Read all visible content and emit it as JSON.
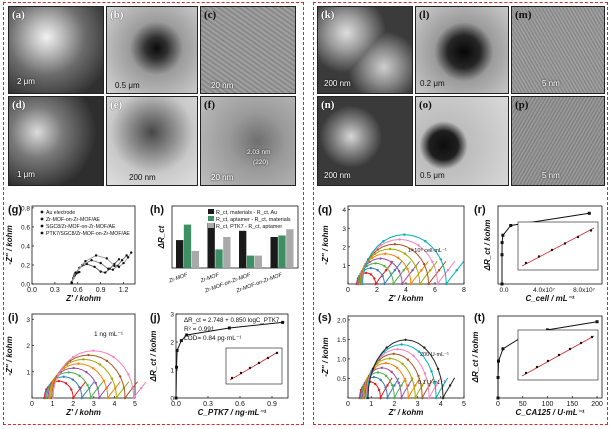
{
  "colors": {
    "frame": "#d9262c",
    "series": [
      "#e41a1c",
      "#377eb8",
      "#4daf4a",
      "#984ea3",
      "#ff7f00",
      "#a6a600",
      "#a65628",
      "#f781bf",
      "#00aeb3",
      "#222222",
      "#1f3a93",
      "#b03030"
    ]
  },
  "micrographs": {
    "a": {
      "label": "(a)",
      "scalebar": "2 μm"
    },
    "b": {
      "label": "(b)",
      "scalebar": "0.5 μm"
    },
    "c": {
      "label": "(c)",
      "scalebar": "20 nm"
    },
    "d": {
      "label": "(d)",
      "scalebar": "1 μm"
    },
    "e": {
      "label": "(e)",
      "scalebar": "200 nm"
    },
    "f": {
      "label": "(f)",
      "scalebar": "20 nm",
      "ann1": "2.03 nm",
      "ann2": "(220)"
    },
    "k": {
      "label": "(k)",
      "scalebar": "200 nm"
    },
    "l": {
      "label": "(l)",
      "scalebar": "0.2 μm"
    },
    "m": {
      "label": "(m)",
      "scalebar": "5 nm"
    },
    "n": {
      "label": "(n)",
      "scalebar": "200 nm"
    },
    "o": {
      "label": "(o)",
      "scalebar": "0.5 μm"
    },
    "p": {
      "label": "(p)",
      "scalebar": "5 nm"
    }
  },
  "chart_data": [
    {
      "panel": "(g)",
      "type": "line",
      "xlabel": "Z' / kohm",
      "ylabel": "-Z'' / kohm",
      "xlim": [
        0,
        1.35
      ],
      "ylim": [
        0,
        0.82
      ],
      "xticks": [
        "0.0",
        "0.3",
        "0.6",
        "0.9",
        "1.2"
      ],
      "yticks": [
        "0.0",
        "0.2",
        "0.4",
        "0.6",
        "0.8"
      ],
      "legend": [
        "Au electrode",
        "Zr-MOF-on-Zr-MOF/AE",
        "SGC8/Zr-MOF-on-Zr-MOF/AE",
        "PTK7/SGC8/Zr-MOF-on-Zr-MOF/AE"
      ],
      "series": [
        {
          "name": "Au electrode",
          "x": [
            0.52,
            0.54,
            0.56,
            0.58,
            0.6,
            0.62
          ],
          "y": [
            0.02,
            0.06,
            0.09,
            0.11,
            0.12,
            0.125
          ]
        },
        {
          "name": "Zr-MOF-on-Zr-MOF/AE",
          "x": [
            0.52,
            0.55,
            0.62,
            0.72,
            0.82,
            0.9,
            0.96,
            1.02,
            1.08,
            1.14
          ],
          "y": [
            0.01,
            0.08,
            0.17,
            0.21,
            0.18,
            0.13,
            0.12,
            0.16,
            0.21,
            0.26
          ]
        },
        {
          "name": "SGC8/Zr-MOF-on-Zr-MOF/AE",
          "x": [
            0.52,
            0.56,
            0.66,
            0.78,
            0.9,
            1.0,
            1.06,
            1.12,
            1.18,
            1.24
          ],
          "y": [
            0.01,
            0.1,
            0.2,
            0.25,
            0.22,
            0.16,
            0.15,
            0.19,
            0.25,
            0.3
          ]
        },
        {
          "name": "PTK7/SGC8/Zr-MOF-on-Zr-MOF/AE",
          "x": [
            0.52,
            0.57,
            0.7,
            0.84,
            0.98,
            1.08,
            1.14,
            1.2,
            1.26,
            1.3
          ],
          "y": [
            0.01,
            0.12,
            0.24,
            0.3,
            0.27,
            0.19,
            0.18,
            0.22,
            0.28,
            0.33
          ]
        }
      ]
    },
    {
      "panel": "(h)",
      "type": "bar",
      "ylabel": "ΔR_ct",
      "categories": [
        "Zr-MOF",
        "Zr-MOF",
        "Zr-MOF-on-Zr-MOF",
        "Zr-MOF-on-Zr-MOF"
      ],
      "legend": [
        "R_ct, materials - R_ct, Au",
        "R_ct, aptamer - R_ct, materials",
        "R_ct, PTK7 - R_ct, aptamer"
      ],
      "series": [
        {
          "name": "R_ct, materials - R_ct, Au",
          "color": "#1a1a1a",
          "values": [
            0.09,
            0.145,
            0.12,
            0.1
          ]
        },
        {
          "name": "R_ct, aptamer - R_ct, materials",
          "color": "#3e8f63",
          "values": [
            0.14,
            0.06,
            0.04,
            0.105
          ]
        },
        {
          "name": "R_ct, PTK7 - R_ct, aptamer",
          "color": "#a9a9a9",
          "values": [
            0.055,
            0.1,
            0.04,
            0.125
          ]
        }
      ]
    },
    {
      "panel": "(i)",
      "type": "line",
      "xlabel": "Z' / kohm",
      "ylabel": "-Z'' / kohm",
      "xlim": [
        0,
        5
      ],
      "ylim": [
        0,
        3.2
      ],
      "xticks": [
        "0",
        "1",
        "2",
        "3",
        "4",
        "5"
      ],
      "yticks": [
        "1",
        "2",
        "3"
      ],
      "annotation": "1 ng mL⁻¹",
      "series_count": 8
    },
    {
      "panel": "(j)",
      "type": "scatter",
      "xlabel": "C_PTK7 / ng·mL⁻¹",
      "ylabel": "ΔR_ct / kohm",
      "xlim": [
        0,
        1.05
      ],
      "ylim": [
        0,
        3
      ],
      "xticks": [
        "0.0",
        "0.3",
        "0.6",
        "0.9"
      ],
      "yticks": [
        "0",
        "1",
        "2",
        "3"
      ],
      "equation": "ΔR_ct = 2.748 + 0.850 logC_PTK7",
      "r2": "R² = 0.991",
      "lod": "LOD= 0.84 pg·mL⁻¹",
      "x": [
        0,
        0.005,
        0.01,
        0.05,
        0.1,
        0.5,
        1.0
      ],
      "y": [
        0,
        1.1,
        1.7,
        2.05,
        2.25,
        2.5,
        2.7
      ]
    },
    {
      "panel": "(q)",
      "type": "line",
      "xlabel": "Z' / kohm",
      "ylabel": "-Z'' / kohm",
      "xlim": [
        0,
        8
      ],
      "ylim": [
        0,
        4.2
      ],
      "xticks": [
        "0",
        "2",
        "4",
        "6",
        "8"
      ],
      "yticks": [
        "1",
        "2",
        "3",
        "4"
      ],
      "annotation": "1×10⁸ cell·mL⁻¹",
      "series_count": 9
    },
    {
      "panel": "(r)",
      "type": "scatter",
      "xlabel": "C_cell / mL⁻¹",
      "ylabel": "ΔR_ct / kohm",
      "xticks": [
        "0.0",
        "4.0x10⁷",
        "8.0x10⁷"
      ],
      "x": [
        0,
        10000.0,
        100000.0,
        1000000.0,
        10000000.0,
        100000000.0
      ],
      "y": [
        0,
        1.2,
        1.7,
        2.0,
        2.4,
        2.9
      ]
    },
    {
      "panel": "(s)",
      "type": "line",
      "xlabel": "Z' / kohm",
      "ylabel": "-Z'' / kohm",
      "xlim": [
        0,
        5
      ],
      "ylim": [
        0,
        2.1
      ],
      "xticks": [
        "0",
        "1",
        "2",
        "3",
        "4",
        "5"
      ],
      "yticks": [
        "0.5",
        "1.0",
        "1.5",
        "2.0"
      ],
      "annotation1": "200 U·mL⁻¹",
      "annotation2": "0.1 U·mL⁻¹",
      "series_count": 10
    },
    {
      "panel": "(t)",
      "type": "scatter",
      "xlabel": "C_CA125 / U·mL⁻¹",
      "ylabel": "ΔR_ct / kohm",
      "xlim": [
        0,
        210
      ],
      "ylim": [
        0,
        1
      ],
      "xticks": [
        "0",
        "50",
        "100",
        "150",
        "200"
      ],
      "x": [
        0,
        0.1,
        1,
        10,
        50,
        100,
        200
      ],
      "y": [
        0,
        0.25,
        0.45,
        0.6,
        0.75,
        0.83,
        0.93
      ]
    }
  ]
}
